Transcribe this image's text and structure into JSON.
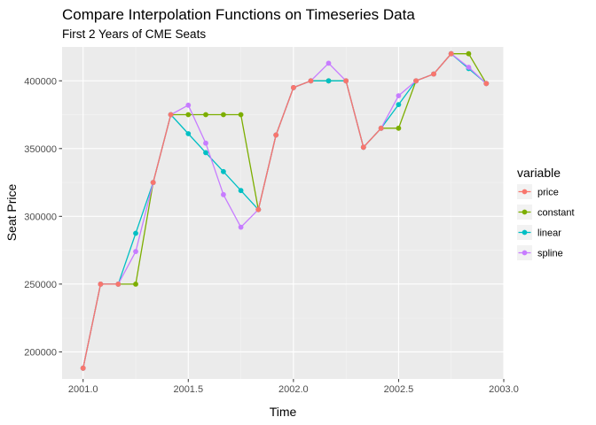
{
  "chart_data": {
    "type": "line",
    "title": "Compare Interpolation Functions on Timeseries Data",
    "subtitle": "First 2 Years of CME Seats",
    "xlabel": "Time",
    "ylabel": "Seat Price",
    "xlim": [
      2000.9,
      2003.0
    ],
    "ylim": [
      180000,
      425000
    ],
    "x_ticks": [
      2001.0,
      2001.5,
      2002.0,
      2002.5,
      2003.0
    ],
    "x_tick_labels": [
      "2001.0",
      "2001.5",
      "2002.0",
      "2002.5",
      "2003.0"
    ],
    "y_ticks": [
      200000,
      250000,
      300000,
      350000,
      400000
    ],
    "y_tick_labels": [
      "200000",
      "250000",
      "300000",
      "350000",
      "400000"
    ],
    "grid": true,
    "legend": {
      "title": "variable",
      "position": "right"
    },
    "x": [
      2001.0,
      2001.083,
      2001.167,
      2001.25,
      2001.333,
      2001.417,
      2001.5,
      2001.583,
      2001.667,
      2001.75,
      2001.833,
      2001.917,
      2002.0,
      2002.083,
      2002.167,
      2002.25,
      2002.333,
      2002.417,
      2002.5,
      2002.583,
      2002.667,
      2002.75,
      2002.833,
      2002.917
    ],
    "series": [
      {
        "name": "constant",
        "color": "#7CAE00",
        "values": [
          188000,
          250000,
          250000,
          250000,
          325000,
          375000,
          375000,
          375000,
          375000,
          375000,
          305000,
          360000,
          395000,
          400000,
          400000,
          400000,
          351000,
          365000,
          365000,
          400000,
          405000,
          420000,
          420000,
          398000
        ]
      },
      {
        "name": "linear",
        "color": "#00BFC4",
        "values": [
          188000,
          250000,
          250000,
          287500,
          325000,
          375000,
          361000,
          347000,
          333000,
          319000,
          305000,
          360000,
          395000,
          400000,
          400000,
          400000,
          351000,
          365000,
          382500,
          400000,
          405000,
          420000,
          409000,
          398000
        ]
      },
      {
        "name": "spline",
        "color": "#C77CFF",
        "values": [
          188000,
          250000,
          250000,
          274000,
          325000,
          375000,
          382000,
          354000,
          316000,
          292000,
          305000,
          360000,
          395000,
          400000,
          413000,
          400000,
          351000,
          365000,
          389000,
          400000,
          405000,
          420000,
          410000,
          398000
        ]
      },
      {
        "name": "price",
        "color": "#F8766D",
        "values": [
          188000,
          250000,
          250000,
          null,
          325000,
          375000,
          null,
          null,
          null,
          null,
          305000,
          360000,
          395000,
          400000,
          null,
          400000,
          351000,
          365000,
          null,
          400000,
          405000,
          420000,
          null,
          398000
        ]
      }
    ],
    "legend_order": [
      "price",
      "constant",
      "linear",
      "spline"
    ]
  }
}
